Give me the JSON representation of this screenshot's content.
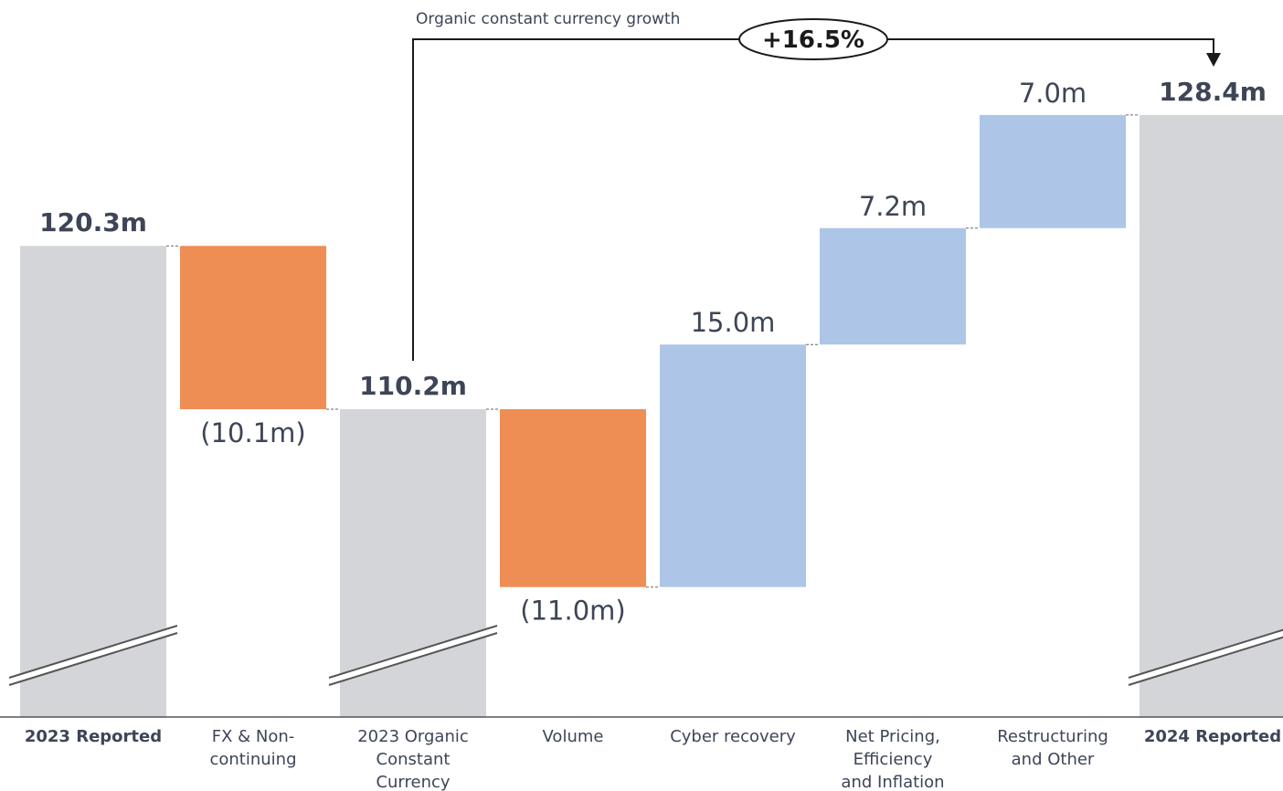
{
  "chart_data": {
    "type": "waterfall",
    "categories": [
      "2023 Reported",
      "FX & Non-continuing",
      "2023 Organic Constant Currency",
      "Volume",
      "Cyber recovery",
      "Net Pricing, Efficiency and Inflation",
      "Restructuring and Other",
      "2024 Reported"
    ],
    "steps": [
      {
        "label": "2023 Reported",
        "kind": "total",
        "value": 120.3,
        "display": "120.3m"
      },
      {
        "label": "FX & Non-continuing",
        "kind": "delta",
        "value": -10.1,
        "display": "(10.1m)"
      },
      {
        "label": "2023 Organic Constant Currency",
        "kind": "total",
        "value": 110.2,
        "display": "110.2m"
      },
      {
        "label": "Volume",
        "kind": "delta",
        "value": -11.0,
        "display": "(11.0m)"
      },
      {
        "label": "Cyber recovery",
        "kind": "delta",
        "value": 15.0,
        "display": "15.0m"
      },
      {
        "label": "Net Pricing, Efficiency and Inflation",
        "kind": "delta",
        "value": 7.2,
        "display": "7.2m"
      },
      {
        "label": "Restructuring and Other",
        "kind": "delta",
        "value": 7.0,
        "display": "7.0m"
      },
      {
        "label": "2024 Reported",
        "kind": "total",
        "value": 128.4,
        "display": "128.4m"
      }
    ],
    "annotation": {
      "label": "Organic constant currency growth",
      "value": "+16.5%",
      "from": "2023 Organic Constant Currency",
      "to": "2024 Reported"
    },
    "axis_break": true,
    "colors": {
      "total": "#d4d5d9",
      "decrease": "#ee8d54",
      "increase": "#adc6e8",
      "text": "#3d4556",
      "axis": "#555555"
    }
  }
}
